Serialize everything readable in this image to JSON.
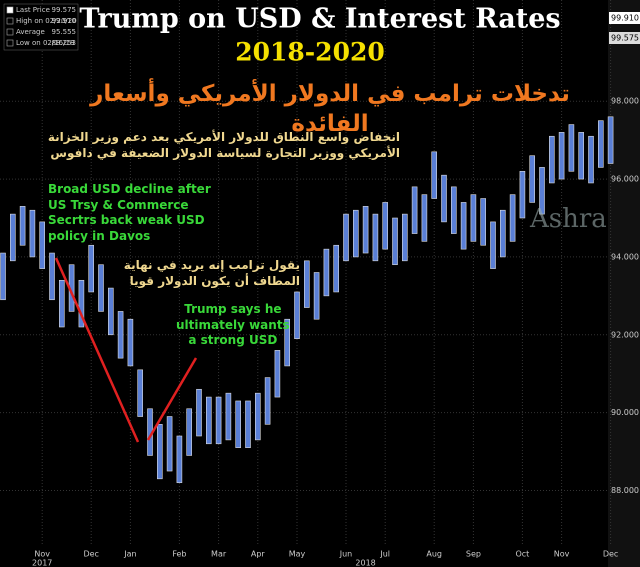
{
  "chart_data": {
    "type": "range",
    "title": "Trump on USD & Interest Rates",
    "subtitle": "2018-2020",
    "subtitle_ar": "تدخلات ترامب في الدولار الأمريكي وأسعار الفائدة",
    "legend": [
      {
        "label": "Last Price",
        "value": "99.575"
      },
      {
        "label": "High on 02/20/20",
        "value": "99.910"
      },
      {
        "label": "Average",
        "value": "95.555"
      },
      {
        "label": "Low on 02/16/18",
        "value": "88.253"
      }
    ],
    "annotations": [
      {
        "lines": [
          "انخفاض واسع النطاق للدولار الأمريكي بعد دعم وزير الخزانة",
          "الأمريكي ووزير التجارة لسياسة الدولار الضعيفة في دافوس"
        ]
      },
      {
        "lines": [
          "Broad USD decline after",
          "US Trsy & Commerce",
          "Secrtrs back weak USD",
          "policy in Davos"
        ]
      },
      {
        "lines": [
          "يقول ترامب إنه يريد في نهاية",
          "المطاف أن يكون الدولار قويا"
        ]
      },
      {
        "lines": [
          "Trump says he",
          "ultimately wants",
          "a strong USD"
        ]
      }
    ],
    "watermark": "Ashra",
    "categories": [
      null,
      null,
      null,
      null,
      "Nov",
      null,
      null,
      null,
      null,
      "Dec",
      null,
      null,
      null,
      "Jan",
      null,
      null,
      null,
      null,
      "Feb",
      null,
      null,
      null,
      "Mar",
      null,
      null,
      null,
      "Apr",
      null,
      null,
      null,
      "May",
      null,
      null,
      null,
      null,
      "Jun",
      null,
      null,
      null,
      "Jul",
      null,
      null,
      null,
      null,
      "Aug",
      null,
      null,
      null,
      "Sep",
      null,
      null,
      null,
      null,
      "Oct",
      null,
      null,
      null,
      "Nov",
      null,
      null,
      null,
      null,
      "Dec"
    ],
    "x_group_labels": [
      {
        "index": 4,
        "label": "2017"
      },
      {
        "index": 37,
        "label": "2018"
      }
    ],
    "high": [
      94.1,
      95.1,
      95.3,
      95.2,
      94.9,
      94.1,
      93.4,
      93.8,
      93.4,
      94.3,
      93.8,
      93.2,
      92.6,
      92.4,
      91.1,
      90.1,
      89.7,
      89.9,
      89.4,
      90.1,
      90.6,
      90.4,
      90.4,
      90.5,
      90.3,
      90.3,
      90.5,
      90.9,
      91.6,
      92.4,
      93.1,
      93.9,
      93.6,
      94.2,
      94.3,
      95.1,
      95.2,
      95.3,
      95.1,
      95.4,
      95.0,
      95.1,
      95.8,
      95.6,
      96.7,
      96.1,
      95.8,
      95.4,
      95.6,
      95.5,
      94.9,
      95.2,
      95.6,
      96.2,
      96.6,
      96.3,
      97.1,
      97.2,
      97.4,
      97.2,
      97.1,
      97.5,
      97.6
    ],
    "low": [
      92.9,
      93.9,
      94.3,
      94.0,
      93.7,
      92.9,
      92.2,
      92.6,
      92.2,
      93.1,
      92.6,
      92.0,
      91.4,
      91.2,
      89.9,
      88.9,
      88.3,
      88.5,
      88.2,
      88.9,
      89.4,
      89.2,
      89.2,
      89.3,
      89.1,
      89.1,
      89.3,
      89.7,
      90.4,
      91.2,
      91.9,
      92.7,
      92.4,
      93.0,
      93.1,
      93.9,
      94.0,
      94.1,
      93.9,
      94.2,
      93.8,
      93.9,
      94.6,
      94.4,
      95.5,
      94.9,
      94.6,
      94.2,
      94.4,
      94.3,
      93.7,
      94.0,
      94.4,
      95.0,
      95.4,
      95.1,
      95.9,
      96.0,
      96.2,
      96.0,
      95.9,
      96.3,
      96.4
    ],
    "color": "#5a7fd6",
    "ylim": [
      86.6,
      100.6
    ],
    "yticks": [
      {
        "value": 88,
        "label": "88.000"
      },
      {
        "value": 90,
        "label": "90.000"
      },
      {
        "value": 92,
        "label": "92.000"
      },
      {
        "value": 94,
        "label": "94.000"
      },
      {
        "value": 96,
        "label": "96.000"
      },
      {
        "value": 98,
        "label": "98.000"
      }
    ],
    "grid": true
  }
}
